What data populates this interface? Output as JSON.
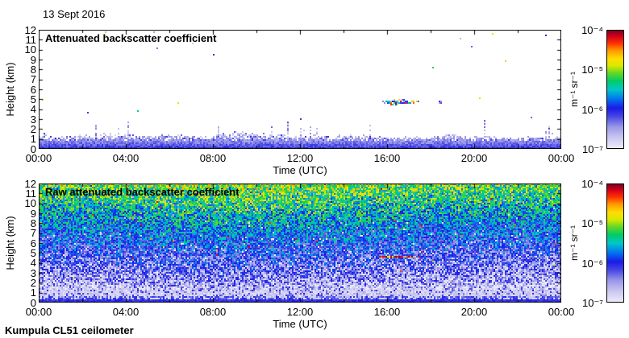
{
  "header": {
    "date": "13 Sept 2016"
  },
  "footer": {
    "instrument_label": "Kumpula CL51 ceilometer"
  },
  "colorbar": {
    "unit_label": "m⁻¹ sr⁻¹",
    "tick_labels": [
      "10⁻⁴",
      "10⁻⁵",
      "10⁻⁶",
      "10⁻⁷"
    ],
    "scale": "log",
    "range_m1sr1": [
      "1e-7",
      "1e-4"
    ],
    "gradient_stops": [
      [
        0.0,
        "#edebf8"
      ],
      [
        0.09,
        "#c9c7f0"
      ],
      [
        0.18,
        "#9a98e8"
      ],
      [
        0.27,
        "#4646e4"
      ],
      [
        0.34,
        "#1a1ae8"
      ],
      [
        0.42,
        "#0077f0"
      ],
      [
        0.5,
        "#00c8c8"
      ],
      [
        0.57,
        "#00cc66"
      ],
      [
        0.64,
        "#66d822"
      ],
      [
        0.7,
        "#d8e800"
      ],
      [
        0.76,
        "#ffdd00"
      ],
      [
        0.83,
        "#ff9900"
      ],
      [
        0.89,
        "#ff3300"
      ],
      [
        0.95,
        "#d40018"
      ],
      [
        1.0,
        "#7c0026"
      ]
    ]
  },
  "chart_data": [
    {
      "type": "heatmap",
      "title": "Attenuated backscatter coefficient",
      "xlabel": "Time (UTC)",
      "ylabel": "Height (km)",
      "x_ticks": [
        "00:00",
        "04:00",
        "08:00",
        "12:00",
        "16:00",
        "20:00",
        "00:00"
      ],
      "x_range_hours": [
        0,
        24
      ],
      "y_ticks": [
        "0",
        "1",
        "2",
        "3",
        "4",
        "5",
        "6",
        "7",
        "8",
        "9",
        "10",
        "11",
        "12"
      ],
      "ylim_km": [
        0,
        12
      ],
      "colorbar_ticks": [
        "10⁻⁴",
        "10⁻⁵",
        "10⁻⁶",
        "10⁻⁷"
      ],
      "features": {
        "background": "white — signal below noise threshold removed",
        "boundary_layer_aerosol": {
          "height_km": "0-2",
          "min_top_km": 1.2,
          "max_top_km": 2.0,
          "plume_time_frac": 0.4
        },
        "cloud_layer": {
          "time_utc": "15:30-17:30",
          "height_km": 4.7,
          "t_center": 0.689,
          "t_halfwidth": 0.04,
          "km_halfheight": 0.26
        }
      }
    },
    {
      "type": "heatmap",
      "title": "Raw attenuated backscatter coefficient",
      "xlabel": "Time (UTC)",
      "ylabel": "Height (km)",
      "x_ticks": [
        "00:00",
        "04:00",
        "08:00",
        "12:00",
        "16:00",
        "20:00",
        "00:00"
      ],
      "x_range_hours": [
        0,
        24
      ],
      "y_ticks": [
        "0",
        "1",
        "2",
        "3",
        "4",
        "5",
        "6",
        "7",
        "8",
        "9",
        "10",
        "11",
        "12"
      ],
      "ylim_km": [
        0,
        12
      ],
      "colorbar_ticks": [
        "10⁻⁴",
        "10⁻⁵",
        "10⁻⁶",
        "10⁻⁷"
      ],
      "features": {
        "background": "range-corrected noise increasing with height: white-blue low, green-yellow aloft",
        "boundary_layer_aerosol": {
          "height_km": "0-1.4",
          "solid_blue_top_km": 0.4
        },
        "cloud_layer": {
          "time_utc": "15:40-17:30",
          "height_km": 4.6,
          "t_start": 0.652,
          "t_end": 0.732
        }
      }
    }
  ],
  "layout_colors": {
    "axis": "#000000",
    "background": "#ffffff"
  }
}
